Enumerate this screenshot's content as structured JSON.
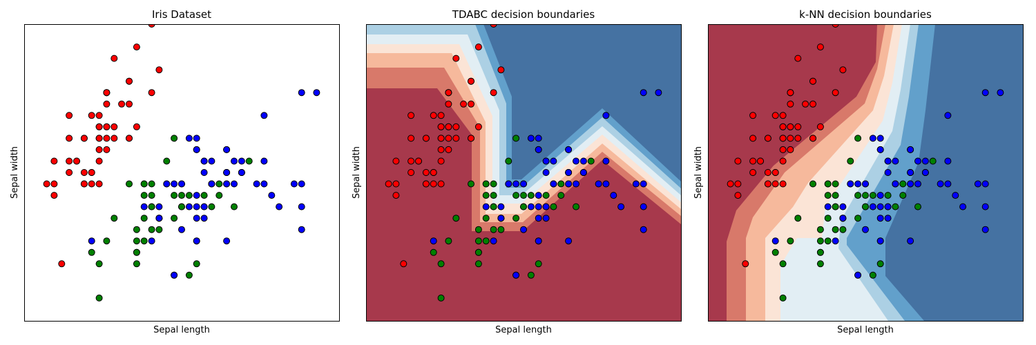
{
  "colors": {
    "class_a": "#ff0000",
    "class_b": "#008000",
    "class_c": "#0000ff",
    "marker_edge": "#000000",
    "boundary_levels": [
      "#a7394c",
      "#d8796a",
      "#f6b99c",
      "#fbe4d6",
      "#e2eef4",
      "#acd0e4",
      "#62a0cb",
      "#4572a2"
    ]
  },
  "chart_data": [
    {
      "type": "scatter",
      "title": "Iris Dataset",
      "xlabel": "Sepal length",
      "ylabel": "Sepal width",
      "xlim": [
        4.0,
        8.2
      ],
      "ylim": [
        1.8,
        4.4
      ],
      "ticks": "hidden",
      "background": "none"
    },
    {
      "type": "scatter",
      "title": "TDABC decision boundaries",
      "xlabel": "Sepal length",
      "ylabel": "Sepal width",
      "xlim": [
        4.0,
        8.2
      ],
      "ylim": [
        1.8,
        4.4
      ],
      "ticks": "hidden",
      "background": "decision-boundary"
    },
    {
      "type": "scatter",
      "title": "k-NN decision boundaries",
      "xlabel": "Sepal length",
      "ylabel": "Sepal width",
      "xlim": [
        4.0,
        8.2
      ],
      "ylim": [
        1.8,
        4.4
      ],
      "ticks": "hidden",
      "background": "decision-boundary"
    }
  ],
  "series": [
    {
      "class": "class_a",
      "points": [
        [
          5.1,
          3.5
        ],
        [
          4.9,
          3.0
        ],
        [
          4.7,
          3.2
        ],
        [
          4.6,
          3.1
        ],
        [
          5.0,
          3.6
        ],
        [
          5.4,
          3.9
        ],
        [
          4.6,
          3.4
        ],
        [
          5.0,
          3.4
        ],
        [
          4.4,
          2.9
        ],
        [
          4.9,
          3.1
        ],
        [
          5.4,
          3.7
        ],
        [
          4.8,
          3.4
        ],
        [
          4.8,
          3.0
        ],
        [
          4.3,
          3.0
        ],
        [
          5.8,
          4.0
        ],
        [
          5.7,
          4.4
        ],
        [
          5.4,
          3.9
        ],
        [
          5.1,
          3.5
        ],
        [
          5.7,
          3.8
        ],
        [
          5.1,
          3.8
        ],
        [
          5.4,
          3.4
        ],
        [
          5.1,
          3.7
        ],
        [
          4.6,
          3.6
        ],
        [
          5.1,
          3.3
        ],
        [
          4.8,
          3.4
        ],
        [
          5.0,
          3.0
        ],
        [
          5.0,
          3.4
        ],
        [
          5.2,
          3.5
        ],
        [
          5.2,
          3.4
        ],
        [
          4.7,
          3.2
        ],
        [
          4.8,
          3.1
        ],
        [
          5.4,
          3.4
        ],
        [
          5.2,
          4.1
        ],
        [
          5.5,
          4.2
        ],
        [
          4.9,
          3.1
        ],
        [
          5.0,
          3.2
        ],
        [
          5.5,
          3.5
        ],
        [
          4.9,
          3.6
        ],
        [
          4.4,
          3.0
        ],
        [
          5.1,
          3.4
        ],
        [
          5.0,
          3.5
        ],
        [
          4.5,
          2.3
        ],
        [
          4.4,
          3.2
        ],
        [
          5.0,
          3.5
        ],
        [
          5.1,
          3.8
        ],
        [
          4.8,
          3.0
        ],
        [
          5.1,
          3.8
        ],
        [
          4.6,
          3.2
        ],
        [
          5.3,
          3.7
        ],
        [
          5.0,
          3.3
        ]
      ]
    },
    {
      "class": "class_b",
      "points": [
        [
          7.0,
          3.2
        ],
        [
          6.4,
          3.2
        ],
        [
          6.9,
          3.1
        ],
        [
          5.5,
          2.3
        ],
        [
          6.5,
          2.8
        ],
        [
          5.7,
          2.8
        ],
        [
          6.3,
          3.3
        ],
        [
          4.9,
          2.4
        ],
        [
          6.6,
          2.9
        ],
        [
          5.2,
          2.7
        ],
        [
          5.0,
          2.0
        ],
        [
          5.9,
          3.0
        ],
        [
          6.0,
          2.2
        ],
        [
          6.1,
          2.9
        ],
        [
          5.6,
          2.9
        ],
        [
          6.7,
          3.1
        ],
        [
          5.6,
          3.0
        ],
        [
          5.8,
          2.7
        ],
        [
          6.2,
          2.2
        ],
        [
          5.6,
          2.5
        ],
        [
          5.9,
          3.2
        ],
        [
          6.1,
          2.8
        ],
        [
          6.3,
          2.5
        ],
        [
          6.1,
          2.8
        ],
        [
          6.4,
          2.9
        ],
        [
          6.6,
          3.0
        ],
        [
          6.8,
          2.8
        ],
        [
          6.7,
          3.0
        ],
        [
          6.0,
          2.9
        ],
        [
          5.7,
          2.6
        ],
        [
          5.5,
          2.4
        ],
        [
          5.5,
          2.4
        ],
        [
          5.8,
          2.7
        ],
        [
          6.0,
          2.7
        ],
        [
          5.4,
          3.0
        ],
        [
          6.0,
          3.4
        ],
        [
          6.7,
          3.1
        ],
        [
          6.3,
          2.3
        ],
        [
          5.6,
          3.0
        ],
        [
          5.5,
          2.5
        ],
        [
          5.5,
          2.6
        ],
        [
          6.1,
          3.0
        ],
        [
          5.8,
          2.6
        ],
        [
          5.0,
          2.3
        ],
        [
          5.6,
          2.7
        ],
        [
          5.7,
          3.0
        ],
        [
          5.7,
          2.9
        ],
        [
          6.2,
          2.9
        ],
        [
          5.1,
          2.5
        ],
        [
          5.7,
          2.8
        ]
      ]
    },
    {
      "class": "class_c",
      "points": [
        [
          6.3,
          3.3
        ],
        [
          5.8,
          2.7
        ],
        [
          7.1,
          3.0
        ],
        [
          6.3,
          2.9
        ],
        [
          6.5,
          3.0
        ],
        [
          7.6,
          3.0
        ],
        [
          4.9,
          2.5
        ],
        [
          7.3,
          2.9
        ],
        [
          6.7,
          2.5
        ],
        [
          7.2,
          3.6
        ],
        [
          6.5,
          3.2
        ],
        [
          6.4,
          2.7
        ],
        [
          6.8,
          3.0
        ],
        [
          5.7,
          2.5
        ],
        [
          5.8,
          2.8
        ],
        [
          6.4,
          3.2
        ],
        [
          6.5,
          3.0
        ],
        [
          7.7,
          3.8
        ],
        [
          7.7,
          2.6
        ],
        [
          6.0,
          2.2
        ],
        [
          6.9,
          3.2
        ],
        [
          5.6,
          2.8
        ],
        [
          7.7,
          2.8
        ],
        [
          6.3,
          2.7
        ],
        [
          6.7,
          3.3
        ],
        [
          7.2,
          3.2
        ],
        [
          6.2,
          2.8
        ],
        [
          6.1,
          3.0
        ],
        [
          6.4,
          2.8
        ],
        [
          7.2,
          3.0
        ],
        [
          7.4,
          2.8
        ],
        [
          7.9,
          3.8
        ],
        [
          6.4,
          2.8
        ],
        [
          6.3,
          2.8
        ],
        [
          6.1,
          2.6
        ],
        [
          7.7,
          3.0
        ],
        [
          6.3,
          3.4
        ],
        [
          6.4,
          3.1
        ],
        [
          6.0,
          3.0
        ],
        [
          6.9,
          3.1
        ],
        [
          6.7,
          3.1
        ],
        [
          6.9,
          3.1
        ],
        [
          5.8,
          2.7
        ],
        [
          6.8,
          3.2
        ],
        [
          6.7,
          3.3
        ],
        [
          6.7,
          3.0
        ],
        [
          6.3,
          2.5
        ],
        [
          6.5,
          3.0
        ],
        [
          6.2,
          3.4
        ],
        [
          5.9,
          3.0
        ]
      ]
    }
  ]
}
